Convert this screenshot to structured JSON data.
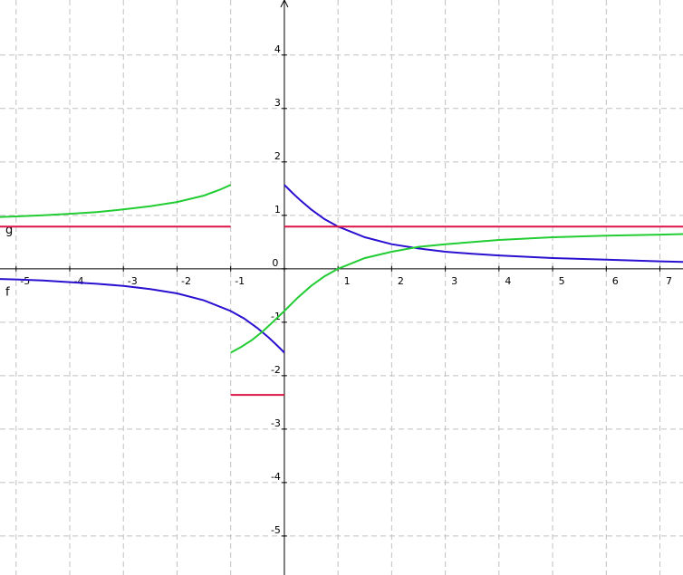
{
  "chart_data": {
    "type": "line",
    "xlim": [
      -5.3,
      7.43
    ],
    "ylim": [
      -5.73,
      5.03
    ],
    "xticks": [
      -5,
      -4,
      -3,
      -2,
      -1,
      0,
      1,
      2,
      3,
      4,
      5,
      6,
      7
    ],
    "yticks": [
      -5,
      -4,
      -3,
      -2,
      -1,
      0,
      1,
      2,
      3,
      4
    ],
    "grid": true,
    "series": [
      {
        "name": "f",
        "color": "#2a10d0",
        "x": [
          -5.3,
          -5,
          -4.5,
          -4,
          -3.5,
          -3,
          -2.5,
          -2,
          -1.5,
          -1,
          -0.75,
          -0.5,
          -0.3,
          -0.15,
          -0.05,
          0,
          0,
          0,
          0.05,
          0.15,
          0.3,
          0.5,
          0.75,
          1,
          1.5,
          2,
          2.5,
          3,
          3.5,
          4,
          5,
          6,
          7,
          7.43
        ],
        "values": [
          -0.19,
          -0.2,
          -0.22,
          -0.25,
          -0.28,
          -0.32,
          -0.38,
          -0.46,
          -0.59,
          -0.79,
          -0.93,
          -1.11,
          -1.28,
          -1.42,
          -1.52,
          -1.57,
          null,
          1.57,
          1.52,
          1.42,
          1.28,
          1.11,
          0.93,
          0.79,
          0.59,
          0.46,
          0.38,
          0.32,
          0.28,
          0.25,
          0.2,
          0.17,
          0.14,
          0.13
        ]
      },
      {
        "name": "g",
        "color": "#22cc33",
        "x": [
          -5.3,
          -5,
          -4.5,
          -4,
          -3.5,
          -3,
          -2.5,
          -2,
          -1.5,
          -1.2,
          -1,
          -1,
          -1,
          -0.8,
          -0.6,
          -0.4,
          -0.2,
          0,
          0.25,
          0.5,
          0.75,
          1,
          1.5,
          2,
          2.5,
          3,
          4,
          5,
          6,
          7,
          7.43
        ],
        "values": [
          0.97,
          0.98,
          1.0,
          1.03,
          1.06,
          1.11,
          1.17,
          1.25,
          1.37,
          1.48,
          1.57,
          null,
          -1.57,
          -1.46,
          -1.33,
          -1.17,
          -0.98,
          -0.79,
          -0.54,
          -0.32,
          -0.14,
          0,
          0.2,
          0.32,
          0.41,
          0.46,
          0.54,
          0.59,
          0.62,
          0.64,
          0.65
        ]
      },
      {
        "color": "#dc1446",
        "x": [
          -5.3,
          -1,
          -1,
          -1,
          0,
          0,
          0,
          7.43
        ],
        "values": [
          0.79,
          0.79,
          null,
          -2.36,
          -2.36,
          null,
          0.79,
          0.79
        ]
      }
    ]
  }
}
